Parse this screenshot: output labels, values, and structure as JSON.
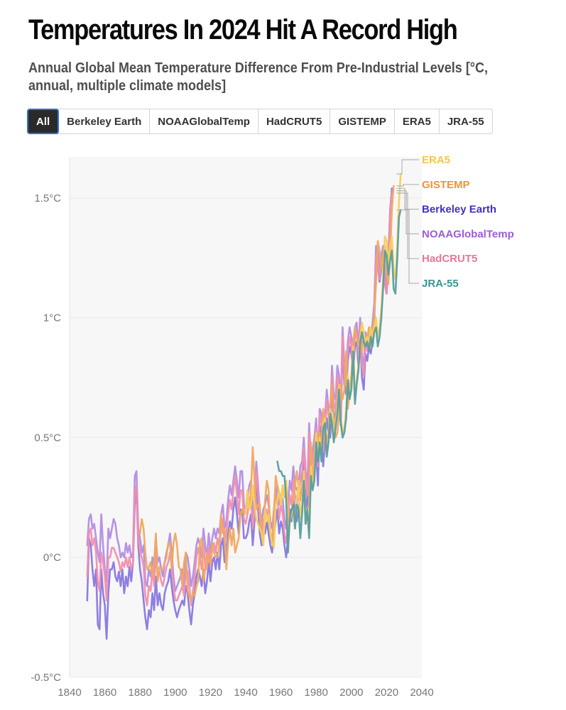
{
  "header": {
    "title": "Temperatures In 2024 Hit A Record High",
    "subtitle": "Annual Global Mean Temperature Difference From Pre-Industrial Levels [°C, annual, multiple climate models]"
  },
  "filters": {
    "active": "All",
    "tabs": [
      "All",
      "Berkeley Earth",
      "NOAAGlobalTemp",
      "HadCRUT5",
      "GISTEMP",
      "ERA5",
      "JRA-55"
    ]
  },
  "chart_data": {
    "type": "line",
    "title": "Temperatures In 2024 Hit A Record High",
    "xlabel": "",
    "ylabel": "",
    "xlim": [
      1840,
      2040
    ],
    "ylim": [
      -0.5,
      1.65
    ],
    "grid": true,
    "y_ticks": [
      {
        "value": 1.5,
        "label": "1.5°C"
      },
      {
        "value": 1.0,
        "label": "1°C"
      },
      {
        "value": 0.5,
        "label": "0.5°C"
      },
      {
        "value": 0.0,
        "label": "0°C"
      },
      {
        "value": -0.5,
        "label": "-0.5°C"
      }
    ],
    "x_ticks": [
      {
        "value": 1840,
        "label": "1840"
      },
      {
        "value": 1860,
        "label": "1860"
      },
      {
        "value": 1880,
        "label": "1880"
      },
      {
        "value": 1900,
        "label": "1900"
      },
      {
        "value": 1920,
        "label": "1920"
      },
      {
        "value": 1940,
        "label": "1940"
      },
      {
        "value": 1960,
        "label": "1960"
      },
      {
        "value": 1980,
        "label": "1980"
      },
      {
        "value": 2000,
        "label": "2000"
      },
      {
        "value": 2020,
        "label": "2020"
      },
      {
        "value": 2040,
        "label": "2040"
      }
    ],
    "legend_placement": "right-end",
    "series": [
      {
        "name": "Berkeley Earth",
        "color": "#3f2fc4",
        "start": 1850,
        "line_color": "#8878e0",
        "label_value": 1.54,
        "values": [
          -0.18,
          0.08,
          0.05,
          -0.05,
          -0.12,
          -0.05,
          -0.28,
          -0.3,
          -0.05,
          -0.15,
          -0.2,
          -0.34,
          -0.15,
          -0.05,
          -0.05,
          -0.02,
          -0.08,
          -0.1,
          -0.06,
          -0.12,
          -0.05,
          -0.15,
          -0.08,
          -0.12,
          -0.04,
          -0.1,
          -0.02,
          0.22,
          0.28,
          0.05,
          -0.05,
          -0.1,
          -0.18,
          -0.25,
          -0.3,
          -0.22,
          -0.25,
          -0.15,
          -0.22,
          -0.08,
          -0.2,
          -0.15,
          -0.2,
          -0.22,
          -0.15,
          -0.12,
          -0.1,
          -0.05,
          -0.12,
          -0.18,
          -0.22,
          -0.25,
          -0.22,
          -0.2,
          -0.18,
          -0.2,
          -0.12,
          -0.15,
          -0.22,
          -0.28,
          -0.2,
          -0.15,
          -0.08,
          -0.05,
          -0.08,
          -0.12,
          -0.05,
          -0.15,
          -0.1,
          -0.02,
          -0.1,
          -0.02,
          0.0,
          -0.05,
          0.02,
          -0.05,
          0.05,
          0.08,
          -0.02,
          0.02,
          0.1,
          0.15,
          0.12,
          0.2,
          0.25,
          0.18,
          0.1,
          0.2,
          0.2,
          0.08,
          0.08,
          0.1,
          0.15,
          0.18,
          0.05,
          0.15,
          0.3,
          0.2,
          0.1,
          0.05,
          0.1,
          0.1,
          0.15,
          0.1,
          0.05,
          0.02,
          0.1,
          0.15,
          0.2,
          0.1,
          0.15,
          0.12,
          0.05,
          0.0,
          0.08,
          0.2,
          0.15,
          0.25,
          0.2,
          0.15,
          0.2,
          0.25,
          0.3,
          0.4,
          0.25,
          0.2,
          0.45,
          0.3,
          0.32,
          0.38,
          0.45,
          0.3,
          0.55,
          0.5,
          0.38,
          0.48,
          0.58,
          0.52,
          0.5,
          0.7,
          0.6,
          0.58,
          0.72,
          0.68,
          0.55,
          0.9,
          0.72,
          0.68,
          0.82,
          0.88,
          0.85,
          0.78,
          0.88,
          0.9,
          0.8,
          0.92,
          0.75,
          0.7,
          0.85,
          0.82,
          0.88,
          0.85,
          0.9,
          0.98,
          1.25,
          1.22,
          1.15,
          1.2,
          1.25,
          1.15,
          1.1,
          1.25,
          1.45,
          1.54
        ]
      },
      {
        "name": "GISTEMP",
        "color": "#f0923a",
        "start": 1880,
        "line_color": "#f0a860",
        "label_value": 1.55,
        "values": [
          0.1,
          0.16,
          0.12,
          0.02,
          -0.05,
          -0.04,
          -0.02,
          -0.08,
          -0.02,
          0.1,
          -0.1,
          -0.04,
          -0.05,
          -0.05,
          -0.02,
          0.0,
          0.06,
          0.06,
          -0.05,
          0.06,
          0.1,
          0.05,
          -0.04,
          -0.05,
          -0.12,
          -0.02,
          0.02,
          -0.14,
          -0.16,
          -0.18,
          -0.15,
          -0.16,
          -0.12,
          -0.1,
          0.06,
          0.08,
          -0.1,
          -0.05,
          0.02,
          -0.02,
          -0.02,
          0.06,
          0.02,
          0.0,
          0.0,
          0.05,
          0.18,
          0.1,
          0.12,
          -0.05,
          0.06,
          0.12,
          0.05,
          0.12,
          0.02,
          0.05,
          0.08,
          0.18,
          0.2,
          0.18,
          0.2,
          0.28,
          0.2,
          0.28,
          0.46,
          0.32,
          0.2,
          0.22,
          0.22,
          0.1,
          0.06,
          0.24,
          0.32,
          0.28,
          0.1,
          0.06,
          0.18,
          0.34,
          0.3,
          0.26,
          0.22,
          0.3,
          0.25,
          0.32,
          0.2,
          0.15,
          0.18,
          0.24,
          0.3,
          0.36,
          0.28,
          0.25,
          0.3,
          0.34,
          0.14,
          0.2,
          0.22,
          0.48,
          0.32,
          0.4,
          0.52,
          0.48,
          0.52,
          0.45,
          0.62,
          0.56,
          0.48,
          0.52,
          0.64,
          0.72,
          0.58,
          0.5,
          0.52,
          0.6,
          0.72,
          0.66,
          0.7,
          0.86,
          0.62,
          0.7,
          0.76,
          0.9,
          0.96,
          0.92,
          0.88,
          0.9,
          0.86,
          0.92,
          0.88,
          0.92,
          0.96,
          0.88,
          0.92,
          1.02,
          1.14,
          1.32,
          1.28,
          1.2,
          1.26,
          1.3,
          1.18,
          1.14,
          1.26,
          1.45,
          1.55
        ]
      },
      {
        "name": "NOAAGlobalTemp",
        "color": "#9b5cd6",
        "start": 1850,
        "line_color": "#b38de4",
        "label_value": 1.53,
        "values": [
          0.05,
          0.16,
          0.18,
          0.12,
          0.14,
          0.08,
          0.02,
          -0.02,
          0.18,
          0.05,
          -0.05,
          -0.1,
          0.12,
          0.08,
          0.12,
          0.16,
          0.14,
          0.08,
          0.05,
          0.0,
          0.02,
          0.0,
          0.06,
          0.02,
          0.05,
          0.0,
          0.02,
          0.34,
          0.36,
          0.12,
          0.08,
          0.02,
          0.05,
          -0.1,
          -0.12,
          -0.05,
          -0.08,
          0.0,
          -0.06,
          0.08,
          -0.02,
          0.0,
          -0.05,
          -0.08,
          -0.02,
          0.02,
          0.05,
          0.1,
          0.02,
          -0.08,
          -0.14,
          -0.12,
          -0.1,
          -0.08,
          -0.05,
          -0.12,
          0.02,
          0.0,
          -0.05,
          -0.12,
          -0.08,
          -0.02,
          0.05,
          0.08,
          0.05,
          0.0,
          0.12,
          0.05,
          0.0,
          0.1,
          0.02,
          0.08,
          0.12,
          0.08,
          0.12,
          0.1,
          0.18,
          0.22,
          0.12,
          0.15,
          0.24,
          0.3,
          0.26,
          0.32,
          0.38,
          0.32,
          0.25,
          0.36,
          0.36,
          0.22,
          0.2,
          0.24,
          0.3,
          0.32,
          0.18,
          0.26,
          0.4,
          0.3,
          0.2,
          0.15,
          0.2,
          0.22,
          0.26,
          0.22,
          0.15,
          0.12,
          0.2,
          0.26,
          0.3,
          0.22,
          0.26,
          0.24,
          0.16,
          0.12,
          0.22,
          0.32,
          0.28,
          0.38,
          0.3,
          0.28,
          0.3,
          0.38,
          0.4,
          0.5,
          0.36,
          0.3,
          0.56,
          0.4,
          0.44,
          0.5,
          0.58,
          0.42,
          0.62,
          0.6,
          0.48,
          0.58,
          0.7,
          0.62,
          0.6,
          0.8,
          0.68,
          0.66,
          0.8,
          0.76,
          0.64,
          0.96,
          0.8,
          0.76,
          0.9,
          0.96,
          0.92,
          0.86,
          0.96,
          0.98,
          0.88,
          1.0,
          0.84,
          0.8,
          0.94,
          0.9,
          0.96,
          0.92,
          0.98,
          1.06,
          1.3,
          1.28,
          1.2,
          1.26,
          1.3,
          1.18,
          1.14,
          1.26,
          1.45,
          1.53
        ]
      },
      {
        "name": "HadCRUT5",
        "color": "#e8769a",
        "start": 1850,
        "line_color": "#f08fae",
        "label_value": 1.52,
        "values": [
          -0.08,
          0.1,
          0.12,
          0.05,
          0.08,
          0.02,
          -0.1,
          -0.14,
          0.02,
          -0.02,
          -0.08,
          -0.18,
          0.0,
          0.0,
          0.04,
          0.04,
          0.02,
          0.0,
          -0.02,
          -0.06,
          -0.02,
          -0.04,
          0.0,
          -0.04,
          0.0,
          -0.05,
          -0.02,
          0.26,
          0.3,
          0.08,
          0.02,
          0.0,
          -0.04,
          -0.16,
          -0.2,
          -0.12,
          -0.14,
          -0.05,
          -0.12,
          0.02,
          -0.08,
          -0.06,
          -0.1,
          -0.12,
          -0.08,
          -0.04,
          -0.02,
          0.02,
          -0.04,
          -0.12,
          -0.18,
          -0.18,
          -0.16,
          -0.14,
          -0.12,
          -0.16,
          -0.04,
          -0.06,
          -0.12,
          -0.2,
          -0.14,
          -0.08,
          0.0,
          0.04,
          0.0,
          -0.05,
          0.06,
          -0.04,
          -0.05,
          0.04,
          -0.04,
          0.04,
          0.06,
          0.02,
          0.08,
          0.04,
          0.12,
          0.16,
          0.06,
          0.1,
          0.18,
          0.24,
          0.2,
          0.28,
          0.34,
          0.26,
          0.18,
          0.28,
          0.28,
          0.16,
          0.14,
          0.18,
          0.24,
          0.26,
          0.12,
          0.2,
          0.36,
          0.26,
          0.16,
          0.1,
          0.16,
          0.16,
          0.2,
          0.16,
          0.1,
          0.08,
          0.16,
          0.22,
          0.26,
          0.16,
          0.22,
          0.18,
          0.1,
          0.06,
          0.14,
          0.26,
          0.22,
          0.32,
          0.26,
          0.22,
          0.26,
          0.32,
          0.36,
          0.46,
          0.32,
          0.26,
          0.52,
          0.36,
          0.4,
          0.46,
          0.54,
          0.38,
          0.6,
          0.56,
          0.44,
          0.54,
          0.66,
          0.58,
          0.56,
          0.76,
          0.64,
          0.62,
          0.76,
          0.72,
          0.6,
          0.92,
          0.76,
          0.72,
          0.86,
          0.92,
          0.88,
          0.82,
          0.92,
          0.94,
          0.84,
          0.96,
          0.8,
          0.76,
          0.9,
          0.86,
          0.92,
          0.88,
          0.94,
          1.02,
          1.26,
          1.24,
          1.16,
          1.22,
          1.26,
          1.14,
          1.1,
          1.22,
          1.43,
          1.52
        ]
      },
      {
        "name": "ERA5",
        "color": "#f5c842",
        "start": 1940,
        "line_color": "#f5cf5a",
        "label_value": 1.6,
        "values": [
          0.18,
          0.28,
          0.2,
          0.22,
          0.3,
          0.22,
          0.16,
          0.14,
          0.12,
          0.1,
          0.05,
          0.2,
          0.15,
          0.18,
          0.1,
          0.06,
          0.04,
          0.22,
          0.24,
          0.28,
          0.22,
          0.3,
          0.26,
          0.32,
          0.08,
          0.16,
          0.18,
          0.22,
          0.12,
          0.24,
          0.32,
          0.16,
          0.22,
          0.36,
          0.14,
          0.18,
          0.1,
          0.38,
          0.3,
          0.34,
          0.52,
          0.42,
          0.5,
          0.42,
          0.56,
          0.58,
          0.44,
          0.5,
          0.62,
          0.58,
          0.5,
          0.56,
          0.64,
          0.72,
          0.58,
          0.52,
          0.54,
          0.62,
          0.76,
          0.68,
          0.72,
          0.88,
          0.66,
          0.74,
          0.8,
          0.92,
          0.98,
          0.94,
          0.9,
          0.92,
          0.9,
          0.96,
          0.92,
          0.96,
          1.0,
          0.92,
          0.96,
          1.04,
          1.16,
          1.34,
          1.32,
          1.22,
          1.3,
          1.34,
          1.2,
          1.16,
          1.3,
          1.48,
          1.6
        ]
      },
      {
        "name": "JRA-55",
        "color": "#3d9292",
        "start": 1958,
        "line_color": "#5a9e9e",
        "label_value": 1.45,
        "values": [
          0.4,
          0.36,
          0.36,
          0.34,
          0.34,
          0.24,
          0.02,
          0.16,
          0.2,
          0.22,
          0.12,
          0.22,
          0.2,
          0.08,
          0.18,
          0.32,
          0.14,
          0.2,
          0.08,
          0.34,
          0.28,
          0.32,
          0.48,
          0.4,
          0.48,
          0.4,
          0.54,
          0.56,
          0.42,
          0.48,
          0.6,
          0.56,
          0.48,
          0.54,
          0.6,
          0.7,
          0.56,
          0.5,
          0.52,
          0.58,
          0.74,
          0.66,
          0.7,
          0.86,
          0.64,
          0.72,
          0.78,
          0.9,
          0.94,
          0.9,
          0.88,
          0.9,
          0.86,
          0.92,
          0.88,
          0.94,
          0.96,
          0.88,
          0.92,
          1.0,
          1.12,
          1.28,
          1.26,
          1.18,
          1.24,
          1.28,
          1.12,
          1.1,
          1.24,
          1.42,
          1.45
        ]
      }
    ],
    "label_order": [
      "ERA5",
      "GISTEMP",
      "Berkeley Earth",
      "NOAAGlobalTemp",
      "HadCRUT5",
      "JRA-55"
    ]
  }
}
